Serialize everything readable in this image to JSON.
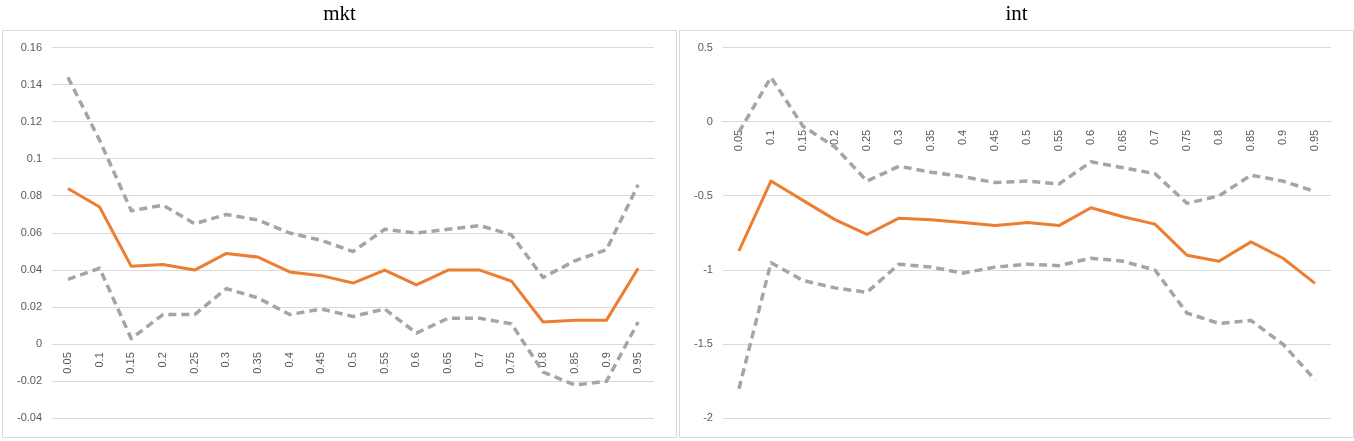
{
  "chart_data": [
    {
      "type": "line",
      "title": "mkt",
      "categories": [
        "0.05",
        "0.1",
        "0.15",
        "0.2",
        "0.25",
        "0.3",
        "0.35",
        "0.4",
        "0.45",
        "0.5",
        "0.55",
        "0.6",
        "0.65",
        "0.7",
        "0.75",
        "0.8",
        "0.85",
        "0.9",
        "0.95"
      ],
      "series": [
        {
          "color": "#ed7d31",
          "line_style": "solid",
          "values": [
            0.084,
            0.074,
            0.042,
            0.043,
            0.04,
            0.049,
            0.047,
            0.039,
            0.037,
            0.033,
            0.04,
            0.032,
            0.04,
            0.04,
            0.034,
            0.012,
            0.013,
            0.013,
            0.041
          ]
        },
        {
          "color": "#a5a5a5",
          "line_style": "dashed",
          "values": [
            0.144,
            0.11,
            0.072,
            0.075,
            0.065,
            0.07,
            0.067,
            0.06,
            0.056,
            0.05,
            0.062,
            0.06,
            0.062,
            0.064,
            0.059,
            0.036,
            0.045,
            0.051,
            0.086
          ]
        },
        {
          "color": "#a5a5a5",
          "line_style": "dashed",
          "values": [
            0.035,
            0.041,
            0.003,
            0.016,
            0.016,
            0.03,
            0.025,
            0.016,
            0.019,
            0.015,
            0.019,
            0.006,
            0.014,
            0.014,
            0.011,
            -0.015,
            -0.022,
            -0.02,
            0.012
          ]
        }
      ],
      "ylim": [
        -0.04,
        0.16
      ],
      "yticks": [
        -0.04,
        -0.02,
        0,
        0.02,
        0.04,
        0.06,
        0.08,
        0.1,
        0.12,
        0.14,
        0.16
      ],
      "grid": "y",
      "legend": false,
      "marker": "none"
    },
    {
      "type": "line",
      "title": "int",
      "categories": [
        "0.05",
        "0.1",
        "0.15",
        "0.2",
        "0.25",
        "0.3",
        "0.35",
        "0.4",
        "0.45",
        "0.5",
        "0.55",
        "0.6",
        "0.65",
        "0.7",
        "0.75",
        "0.8",
        "0.85",
        "0.9",
        "0.95"
      ],
      "series": [
        {
          "color": "#ed7d31",
          "line_style": "solid",
          "values": [
            -0.87,
            -0.4,
            -0.53,
            -0.66,
            -0.76,
            -0.65,
            -0.66,
            -0.68,
            -0.7,
            -0.68,
            -0.7,
            -0.58,
            -0.64,
            -0.69,
            -0.9,
            -0.94,
            -0.81,
            -0.92,
            -1.09
          ]
        },
        {
          "color": "#a5a5a5",
          "line_style": "dashed",
          "values": [
            -0.07,
            0.3,
            -0.03,
            -0.17,
            -0.4,
            -0.3,
            -0.34,
            -0.37,
            -0.41,
            -0.4,
            -0.42,
            -0.27,
            -0.31,
            -0.35,
            -0.55,
            -0.5,
            -0.36,
            -0.4,
            -0.47
          ]
        },
        {
          "color": "#a5a5a5",
          "line_style": "dashed",
          "values": [
            -1.8,
            -0.95,
            -1.07,
            -1.12,
            -1.15,
            -0.96,
            -0.98,
            -1.02,
            -0.98,
            -0.96,
            -0.97,
            -0.92,
            -0.94,
            -1.0,
            -1.29,
            -1.36,
            -1.34,
            -1.5,
            -1.74
          ]
        }
      ],
      "ylim": [
        -2,
        0.5
      ],
      "yticks": [
        -2,
        -1.5,
        -1,
        -0.5,
        0,
        0.5
      ],
      "grid": "y",
      "legend": false,
      "marker": "none"
    }
  ]
}
